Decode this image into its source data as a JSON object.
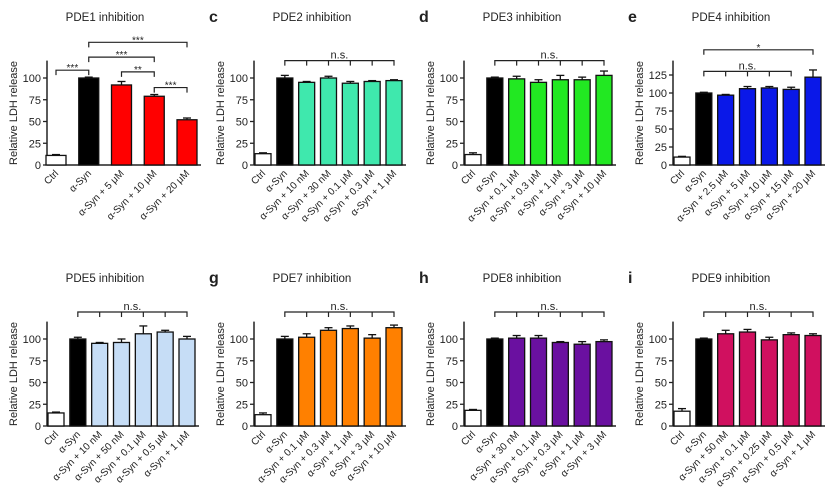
{
  "chart_data": [
    {
      "letter": "",
      "title": "PDE1 inhibition",
      "type": "bar",
      "ylabel": "Relative LDH release",
      "ylim": [
        0,
        120
      ],
      "yticks": [
        0,
        25,
        50,
        75,
        100
      ],
      "color": "#ff0000",
      "categories": [
        "Ctrl",
        "α-Syn",
        "α-Syn + 5 μM",
        "α-Syn + 10 μM",
        "α-Syn + 20 μM"
      ],
      "values": [
        11,
        100,
        92,
        79,
        52
      ],
      "errors": [
        1,
        1,
        4,
        2,
        2
      ],
      "significance": [
        {
          "from": 0,
          "to": 1,
          "label": "***",
          "y": 109
        },
        {
          "from": 1,
          "to": 4,
          "label": "***",
          "y": 141
        },
        {
          "from": 1,
          "to": 3,
          "label": "***",
          "y": 124
        },
        {
          "from": 2,
          "to": 3,
          "label": "**",
          "y": 107
        },
        {
          "from": 3,
          "to": 4,
          "label": "***",
          "y": 89
        }
      ]
    },
    {
      "letter": "c",
      "title": "PDE2 inhibition",
      "type": "bar",
      "ylabel": "Relative LDH release",
      "ylim": [
        0,
        120
      ],
      "yticks": [
        0,
        25,
        50,
        75,
        100
      ],
      "color": "#3fe8ad",
      "categories": [
        "Ctrl",
        "α-Syn",
        "α-Syn + 10 nM",
        "α-Syn + 30 nM",
        "α-Syn + 0.1 μM",
        "α-Syn + 0.3 μM",
        "α-Syn + 1 μM"
      ],
      "values": [
        13,
        100,
        95,
        100,
        94,
        96,
        97
      ],
      "errors": [
        1,
        3,
        1,
        2,
        2,
        1,
        1
      ],
      "significance": [
        {
          "from": 1,
          "to": 6,
          "label": "n.s.",
          "y": 120,
          "ticks": true
        }
      ]
    },
    {
      "letter": "d",
      "title": "PDE3 inhibition",
      "type": "bar",
      "ylabel": "Relative LDH release",
      "ylim": [
        0,
        120
      ],
      "yticks": [
        0,
        25,
        50,
        75,
        100
      ],
      "color": "#22e822",
      "categories": [
        "Ctrl",
        "α-Syn",
        "α-Syn + 0.1 μM",
        "α-Syn + 0.3 μM",
        "α-Syn + 1 μM",
        "α-Syn + 3 μM",
        "α-Syn + 10 μM"
      ],
      "values": [
        12,
        100,
        99,
        95,
        98,
        98,
        103
      ],
      "errors": [
        2,
        1,
        3,
        3,
        5,
        3,
        5
      ],
      "significance": [
        {
          "from": 1,
          "to": 6,
          "label": "n.s.",
          "y": 120,
          "ticks": true
        }
      ]
    },
    {
      "letter": "e",
      "title": "PDE4 inhibition",
      "type": "bar",
      "ylabel": "Relative LDH release",
      "ylim": [
        0,
        145
      ],
      "yticks": [
        0,
        25,
        50,
        75,
        100,
        125
      ],
      "color": "#0a18e8",
      "categories": [
        "Ctrl",
        "α-Syn",
        "α-Syn + 2.5 μM",
        "α-Syn + 5 μM",
        "α-Syn + 10 μM",
        "α-Syn + 15 μM",
        "α-Syn + 20 μM"
      ],
      "values": [
        11,
        100,
        97,
        106,
        107,
        105,
        122
      ],
      "errors": [
        1,
        1,
        1,
        3,
        2,
        3,
        10
      ],
      "significance": [
        {
          "from": 1,
          "to": 6,
          "label": "*",
          "y": 160
        },
        {
          "from": 1,
          "to": 5,
          "label": "n.s.",
          "y": 130,
          "ticks": true
        }
      ]
    },
    {
      "letter": "",
      "title": "PDE5 inhibition",
      "type": "bar",
      "ylabel": "Relative LDH release",
      "ylim": [
        0,
        120
      ],
      "yticks": [
        0,
        25,
        50,
        75,
        100
      ],
      "color": "#c6ddf6",
      "categories": [
        "Ctrl",
        "α-Syn",
        "α-Syn + 10 nM",
        "α-Syn + 50 nM",
        "α-Syn + 0.1 μM",
        "α-Syn + 0.5 μM",
        "α-Syn + 1 μM"
      ],
      "values": [
        15,
        100,
        95,
        96,
        106,
        108,
        100
      ],
      "errors": [
        1,
        2,
        1,
        4,
        9,
        2,
        3
      ],
      "significance": [
        {
          "from": 1,
          "to": 6,
          "label": "n.s.",
          "y": 131,
          "ticks": true
        }
      ]
    },
    {
      "letter": "g",
      "title": "PDE7 inhibition",
      "type": "bar",
      "ylabel": "Relative LDH release",
      "ylim": [
        0,
        120
      ],
      "yticks": [
        0,
        25,
        50,
        75,
        100
      ],
      "color": "#ff8000",
      "categories": [
        "Ctrl",
        "α-Syn",
        "α-Syn + 0.1 μM",
        "α-Syn + 0.3 μM",
        "α-Syn + 1 μM",
        "α-Syn + 3 μM",
        "α-Syn + 10 μM"
      ],
      "values": [
        13,
        100,
        102,
        110,
        112,
        101,
        113
      ],
      "errors": [
        2,
        3,
        4,
        3,
        3,
        4,
        3
      ],
      "significance": [
        {
          "from": 1,
          "to": 6,
          "label": "n.s.",
          "y": 131,
          "ticks": true
        }
      ]
    },
    {
      "letter": "h",
      "title": "PDE8 inhibition",
      "type": "bar",
      "ylabel": "Relative LDH release",
      "ylim": [
        0,
        120
      ],
      "yticks": [
        0,
        25,
        50,
        75,
        100
      ],
      "color": "#6a10a0",
      "categories": [
        "Ctrl",
        "α-Syn",
        "α-Syn + 30 nM",
        "α-Syn + 0.1 μM",
        "α-Syn + 0.3 μM",
        "α-Syn + 1 μM",
        "α-Syn + 3 μM"
      ],
      "values": [
        18,
        100,
        101,
        101,
        96,
        94,
        97
      ],
      "errors": [
        1,
        1,
        3,
        3,
        1,
        3,
        2
      ],
      "significance": [
        {
          "from": 1,
          "to": 6,
          "label": "n.s.",
          "y": 131,
          "ticks": true
        }
      ]
    },
    {
      "letter": "i",
      "title": "PDE9 inhibition",
      "type": "bar",
      "ylabel": "Relative LDH release",
      "ylim": [
        0,
        120
      ],
      "yticks": [
        0,
        25,
        50,
        75,
        100
      ],
      "color": "#d0105f",
      "categories": [
        "Ctrl",
        "α-Syn",
        "α-Syn + 50 nM",
        "α-Syn + 0.1 μM",
        "α-Syn + 0.25 μM",
        "α-Syn + 0.5 μM",
        "α-Syn + 1 μM"
      ],
      "values": [
        17,
        100,
        106,
        108,
        99,
        105,
        104
      ],
      "errors": [
        3,
        1,
        4,
        3,
        3,
        2,
        2
      ],
      "significance": [
        {
          "from": 1,
          "to": 6,
          "label": "n.s.",
          "y": 131,
          "ticks": true
        }
      ]
    }
  ],
  "fixed_colors": {
    "ctrl": "#ffffff",
    "asyn": "#000000"
  }
}
